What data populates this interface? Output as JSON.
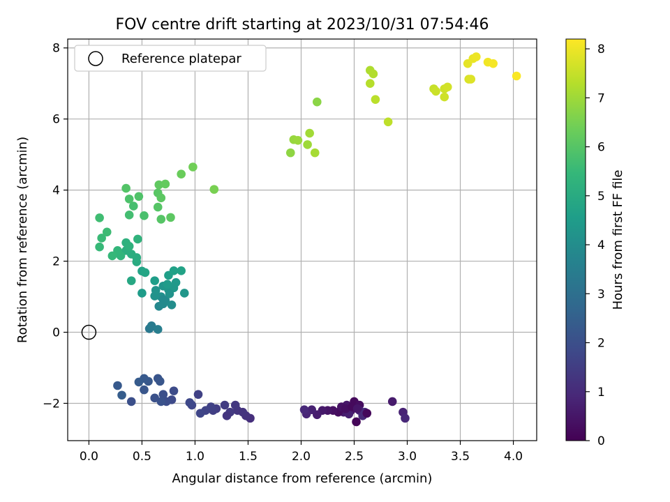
{
  "chart_data": {
    "type": "scatter",
    "title": "FOV centre drift starting at 2023/10/31 07:54:46",
    "xlabel": "Angular distance from reference (arcmin)",
    "ylabel": "Rotation from reference (arcmin)",
    "xlim": [
      -0.2,
      4.22
    ],
    "ylim": [
      -3.05,
      8.25
    ],
    "xticks": [
      "0.0",
      "0.5",
      "1.0",
      "1.5",
      "2.0",
      "2.5",
      "3.0",
      "3.5",
      "4.0"
    ],
    "yticks": [
      "−2",
      "0",
      "2",
      "4",
      "6",
      "8"
    ],
    "grid": true,
    "legend": {
      "placement": "top-left",
      "entries": [
        "Reference platepar"
      ]
    },
    "reference_point": {
      "x": 0.0,
      "y": 0.0
    },
    "colorbar": {
      "label": "Hours from first FF file",
      "range": [
        0,
        8.2
      ],
      "ticks": [
        "0",
        "1",
        "2",
        "3",
        "4",
        "5",
        "6",
        "7",
        "8"
      ],
      "colormap": "viridis"
    },
    "points": [
      {
        "x": 2.52,
        "y": -2.52,
        "c": 0.1
      },
      {
        "x": 2.5,
        "y": -1.95,
        "c": 0.2
      },
      {
        "x": 2.55,
        "y": -2.05,
        "c": 0.3
      },
      {
        "x": 2.47,
        "y": -2.2,
        "c": 0.4
      },
      {
        "x": 2.43,
        "y": -2.05,
        "c": 0.5
      },
      {
        "x": 2.4,
        "y": -2.25,
        "c": 0.6
      },
      {
        "x": 2.45,
        "y": -2.3,
        "c": 0.7
      },
      {
        "x": 2.55,
        "y": -2.2,
        "c": 0.8
      },
      {
        "x": 2.58,
        "y": -2.35,
        "c": 0.9
      },
      {
        "x": 2.6,
        "y": -2.25,
        "c": 1.0
      },
      {
        "x": 2.62,
        "y": -2.28,
        "c": 0.15
      },
      {
        "x": 2.35,
        "y": -2.25,
        "c": 0.25
      },
      {
        "x": 2.3,
        "y": -2.2,
        "c": 0.35
      },
      {
        "x": 2.25,
        "y": -2.2,
        "c": 0.45
      },
      {
        "x": 2.2,
        "y": -2.2,
        "c": 0.55
      },
      {
        "x": 2.15,
        "y": -2.32,
        "c": 0.65
      },
      {
        "x": 2.1,
        "y": -2.18,
        "c": 0.75
      },
      {
        "x": 2.05,
        "y": -2.3,
        "c": 0.85
      },
      {
        "x": 2.03,
        "y": -2.18,
        "c": 0.95
      },
      {
        "x": 2.38,
        "y": -2.1,
        "c": 0.4
      },
      {
        "x": 2.42,
        "y": -2.15,
        "c": 0.3
      },
      {
        "x": 2.48,
        "y": -2.1,
        "c": 0.2
      },
      {
        "x": 2.86,
        "y": -1.95,
        "c": 0.6
      },
      {
        "x": 2.96,
        "y": -2.25,
        "c": 0.8
      },
      {
        "x": 2.98,
        "y": -2.42,
        "c": 0.9
      },
      {
        "x": 2.53,
        "y": -2.15,
        "c": 0.5
      },
      {
        "x": 1.52,
        "y": -2.42,
        "c": 1.1
      },
      {
        "x": 1.48,
        "y": -2.35,
        "c": 1.2
      },
      {
        "x": 1.4,
        "y": -2.2,
        "c": 1.3
      },
      {
        "x": 1.45,
        "y": -2.25,
        "c": 1.25
      },
      {
        "x": 1.38,
        "y": -2.05,
        "c": 1.35
      },
      {
        "x": 1.33,
        "y": -2.25,
        "c": 1.4
      },
      {
        "x": 1.3,
        "y": -2.35,
        "c": 1.3
      },
      {
        "x": 1.28,
        "y": -2.05,
        "c": 1.45
      },
      {
        "x": 1.2,
        "y": -2.15,
        "c": 1.5
      },
      {
        "x": 1.17,
        "y": -2.2,
        "c": 1.55
      },
      {
        "x": 1.15,
        "y": -2.1,
        "c": 1.6
      },
      {
        "x": 1.1,
        "y": -2.2,
        "c": 1.65
      },
      {
        "x": 1.05,
        "y": -2.28,
        "c": 1.7
      },
      {
        "x": 1.03,
        "y": -1.75,
        "c": 1.6
      },
      {
        "x": 0.97,
        "y": -2.05,
        "c": 1.75
      },
      {
        "x": 0.95,
        "y": -1.98,
        "c": 1.8
      },
      {
        "x": 0.8,
        "y": -1.65,
        "c": 1.9
      },
      {
        "x": 0.78,
        "y": -1.9,
        "c": 1.85
      },
      {
        "x": 0.73,
        "y": -1.95,
        "c": 1.95
      },
      {
        "x": 0.7,
        "y": -1.75,
        "c": 2.0
      },
      {
        "x": 0.68,
        "y": -1.95,
        "c": 2.1
      },
      {
        "x": 0.65,
        "y": -1.3,
        "c": 2.15
      },
      {
        "x": 0.67,
        "y": -1.38,
        "c": 2.2
      },
      {
        "x": 0.62,
        "y": -1.85,
        "c": 2.05
      },
      {
        "x": 0.56,
        "y": -1.38,
        "c": 2.25
      },
      {
        "x": 0.52,
        "y": -1.3,
        "c": 2.3
      },
      {
        "x": 0.52,
        "y": -1.62,
        "c": 2.2
      },
      {
        "x": 0.47,
        "y": -1.4,
        "c": 2.35
      },
      {
        "x": 0.4,
        "y": -1.95,
        "c": 2.0
      },
      {
        "x": 0.31,
        "y": -1.77,
        "c": 2.4
      },
      {
        "x": 0.27,
        "y": -1.5,
        "c": 2.3
      },
      {
        "x": 0.57,
        "y": 0.1,
        "c": 3.3
      },
      {
        "x": 0.59,
        "y": 0.18,
        "c": 3.4
      },
      {
        "x": 0.65,
        "y": 0.08,
        "c": 3.5
      },
      {
        "x": 0.66,
        "y": 0.73,
        "c": 3.8
      },
      {
        "x": 0.7,
        "y": 0.8,
        "c": 3.9
      },
      {
        "x": 0.72,
        "y": 0.9,
        "c": 3.95
      },
      {
        "x": 0.78,
        "y": 0.77,
        "c": 4.0
      },
      {
        "x": 0.68,
        "y": 1.0,
        "c": 4.1
      },
      {
        "x": 0.62,
        "y": 1.02,
        "c": 4.15
      },
      {
        "x": 0.63,
        "y": 1.18,
        "c": 4.2
      },
      {
        "x": 0.7,
        "y": 1.3,
        "c": 4.25
      },
      {
        "x": 0.75,
        "y": 1.2,
        "c": 4.3
      },
      {
        "x": 0.8,
        "y": 1.25,
        "c": 4.35
      },
      {
        "x": 0.82,
        "y": 1.4,
        "c": 4.4
      },
      {
        "x": 0.9,
        "y": 1.1,
        "c": 4.3
      },
      {
        "x": 0.76,
        "y": 1.08,
        "c": 4.2
      },
      {
        "x": 0.74,
        "y": 1.35,
        "c": 4.45
      },
      {
        "x": 0.5,
        "y": 1.1,
        "c": 4.5
      },
      {
        "x": 0.62,
        "y": 1.45,
        "c": 4.55
      },
      {
        "x": 0.75,
        "y": 1.6,
        "c": 4.6
      },
      {
        "x": 0.8,
        "y": 1.73,
        "c": 4.65
      },
      {
        "x": 0.87,
        "y": 1.73,
        "c": 4.7
      },
      {
        "x": 0.5,
        "y": 1.72,
        "c": 4.75
      },
      {
        "x": 0.53,
        "y": 1.68,
        "c": 4.8
      },
      {
        "x": 0.7,
        "y": 0.92,
        "c": 3.9
      },
      {
        "x": 0.4,
        "y": 1.45,
        "c": 4.9
      },
      {
        "x": 0.45,
        "y": 1.98,
        "c": 5.0
      },
      {
        "x": 0.45,
        "y": 2.1,
        "c": 5.05
      },
      {
        "x": 0.4,
        "y": 2.2,
        "c": 5.1
      },
      {
        "x": 0.35,
        "y": 2.3,
        "c": 5.15
      },
      {
        "x": 0.35,
        "y": 2.52,
        "c": 5.2
      },
      {
        "x": 0.38,
        "y": 2.42,
        "c": 5.25
      },
      {
        "x": 0.46,
        "y": 2.62,
        "c": 5.3
      },
      {
        "x": 0.3,
        "y": 2.15,
        "c": 5.35
      },
      {
        "x": 0.27,
        "y": 2.3,
        "c": 5.4
      },
      {
        "x": 0.22,
        "y": 2.15,
        "c": 5.45
      },
      {
        "x": 0.1,
        "y": 2.4,
        "c": 5.5
      },
      {
        "x": 0.12,
        "y": 2.65,
        "c": 5.55
      },
      {
        "x": 0.17,
        "y": 2.82,
        "c": 5.6
      },
      {
        "x": 0.1,
        "y": 3.22,
        "c": 5.65
      },
      {
        "x": 0.38,
        "y": 3.3,
        "c": 5.7
      },
      {
        "x": 0.42,
        "y": 3.55,
        "c": 5.75
      },
      {
        "x": 0.52,
        "y": 3.28,
        "c": 5.8
      },
      {
        "x": 0.38,
        "y": 3.75,
        "c": 5.85
      },
      {
        "x": 0.47,
        "y": 3.82,
        "c": 5.9
      },
      {
        "x": 0.35,
        "y": 4.05,
        "c": 5.95
      },
      {
        "x": 0.65,
        "y": 3.52,
        "c": 6.0
      },
      {
        "x": 0.65,
        "y": 3.92,
        "c": 6.05
      },
      {
        "x": 0.68,
        "y": 3.78,
        "c": 6.1
      },
      {
        "x": 0.66,
        "y": 4.15,
        "c": 6.15
      },
      {
        "x": 0.72,
        "y": 4.17,
        "c": 6.2
      },
      {
        "x": 0.68,
        "y": 3.18,
        "c": 6.0
      },
      {
        "x": 0.77,
        "y": 3.23,
        "c": 6.1
      },
      {
        "x": 0.87,
        "y": 4.45,
        "c": 6.3
      },
      {
        "x": 0.98,
        "y": 4.65,
        "c": 6.4
      },
      {
        "x": 1.18,
        "y": 4.02,
        "c": 6.5
      },
      {
        "x": 1.9,
        "y": 5.05,
        "c": 6.8
      },
      {
        "x": 1.93,
        "y": 5.42,
        "c": 6.9
      },
      {
        "x": 1.97,
        "y": 5.4,
        "c": 6.95
      },
      {
        "x": 2.06,
        "y": 5.28,
        "c": 7.0
      },
      {
        "x": 2.08,
        "y": 5.6,
        "c": 7.05
      },
      {
        "x": 2.13,
        "y": 5.05,
        "c": 7.1
      },
      {
        "x": 2.15,
        "y": 6.48,
        "c": 6.75
      },
      {
        "x": 2.65,
        "y": 7.37,
        "c": 7.2
      },
      {
        "x": 2.68,
        "y": 7.27,
        "c": 7.25
      },
      {
        "x": 2.65,
        "y": 7.0,
        "c": 7.3
      },
      {
        "x": 2.7,
        "y": 6.55,
        "c": 7.35
      },
      {
        "x": 2.82,
        "y": 5.92,
        "c": 7.4
      },
      {
        "x": 3.25,
        "y": 6.85,
        "c": 7.5
      },
      {
        "x": 3.27,
        "y": 6.78,
        "c": 7.55
      },
      {
        "x": 3.35,
        "y": 6.85,
        "c": 7.6
      },
      {
        "x": 3.38,
        "y": 6.9,
        "c": 7.65
      },
      {
        "x": 3.35,
        "y": 6.62,
        "c": 7.6
      },
      {
        "x": 3.57,
        "y": 7.56,
        "c": 7.9
      },
      {
        "x": 3.58,
        "y": 7.12,
        "c": 7.75
      },
      {
        "x": 3.6,
        "y": 7.12,
        "c": 7.8
      },
      {
        "x": 3.62,
        "y": 7.7,
        "c": 7.95
      },
      {
        "x": 3.65,
        "y": 7.75,
        "c": 8.0
      },
      {
        "x": 3.76,
        "y": 7.6,
        "c": 8.05
      },
      {
        "x": 3.81,
        "y": 7.56,
        "c": 8.1
      },
      {
        "x": 4.03,
        "y": 7.21,
        "c": 8.15
      }
    ]
  }
}
